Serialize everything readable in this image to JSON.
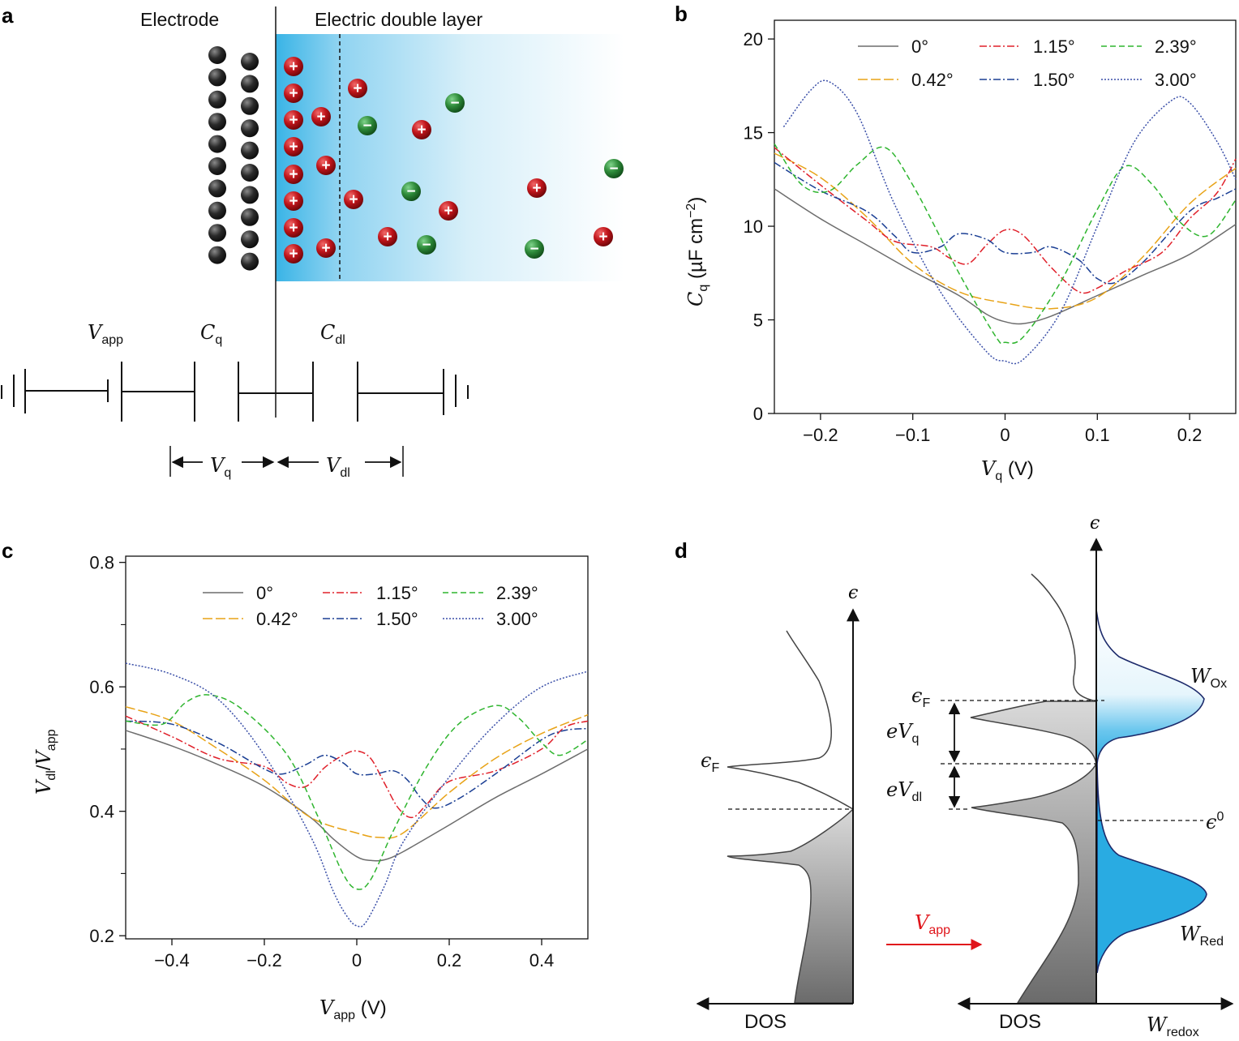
{
  "panel_labels": {
    "a": "a",
    "b": "b",
    "c": "c",
    "d": "d"
  },
  "panel_a": {
    "electrode_title": "Electrode",
    "edl_title": "Electric double layer",
    "plus_sign": "+",
    "minus_sign": "−",
    "v_app": {
      "main": "V",
      "sub": "app"
    },
    "c_q": {
      "main": "C",
      "sub": "q"
    },
    "c_dl": {
      "main": "C",
      "sub": "dl"
    },
    "v_q": {
      "main": "V",
      "sub": "q"
    },
    "v_dl": {
      "main": "V",
      "sub": "dl"
    },
    "colors": {
      "electrode": "#222222",
      "cation": "#c0151b",
      "anion": "#2e8b3a",
      "edl": "#3bb8e8"
    }
  },
  "legend": {
    "entries": [
      {
        "label": "0°",
        "color": "#6d6d6d",
        "dash": "solid"
      },
      {
        "label": "1.15°",
        "color": "#e0202a",
        "dash": "dashdot"
      },
      {
        "label": "2.39°",
        "color": "#2fb52f",
        "dash": "dashed"
      },
      {
        "label": "0.42°",
        "color": "#e8a317",
        "dash": "longdash"
      },
      {
        "label": "1.50°",
        "color": "#1b3f94",
        "dash": "dashdot"
      },
      {
        "label": "3.00°",
        "color": "#3a4fa8",
        "dash": "dotted"
      }
    ]
  },
  "chart_data": [
    {
      "type": "line",
      "panel": "b",
      "xlabel": {
        "main": "V",
        "sub": "q",
        "rest": " (V)"
      },
      "ylabel": {
        "main": "C",
        "sub": "q",
        "rest": " (µF cm",
        "sup": "−2",
        "close": ")"
      },
      "xlim": [
        -0.25,
        0.25
      ],
      "ylim": [
        0,
        21
      ],
      "xticks": [
        -0.2,
        -0.1,
        0,
        0.1,
        0.2
      ],
      "xtick_labels": [
        "−0.2",
        "−0.1",
        "0",
        "0.1",
        "0.2"
      ],
      "yticks": [
        0,
        5,
        10,
        15,
        20
      ],
      "ytick_labels": [
        "0",
        "5",
        "10",
        "15",
        "20"
      ],
      "series": [
        {
          "name": "0°",
          "points": [
            [
              -0.25,
              12.0
            ],
            [
              -0.2,
              10.4
            ],
            [
              -0.15,
              9.0
            ],
            [
              -0.1,
              7.6
            ],
            [
              -0.05,
              6.3
            ],
            [
              -0.02,
              5.3
            ],
            [
              0,
              4.9
            ],
            [
              0.02,
              4.8
            ],
            [
              0.05,
              5.2
            ],
            [
              0.1,
              6.3
            ],
            [
              0.15,
              7.4
            ],
            [
              0.2,
              8.5
            ],
            [
              0.25,
              10.1
            ]
          ]
        },
        {
          "name": "0.42°",
          "points": [
            [
              -0.25,
              13.9
            ],
            [
              -0.2,
              12.6
            ],
            [
              -0.15,
              10.5
            ],
            [
              -0.1,
              8.0
            ],
            [
              -0.05,
              6.5
            ],
            [
              0,
              5.9
            ],
            [
              0.05,
              5.6
            ],
            [
              0.1,
              6.2
            ],
            [
              0.15,
              8.4
            ],
            [
              0.2,
              11.2
            ],
            [
              0.25,
              13.1
            ]
          ]
        },
        {
          "name": "1.15°",
          "points": [
            [
              -0.25,
              14.2
            ],
            [
              -0.2,
              12.2
            ],
            [
              -0.15,
              10.3
            ],
            [
              -0.12,
              9.2
            ],
            [
              -0.08,
              8.9
            ],
            [
              -0.06,
              8.3
            ],
            [
              -0.04,
              8.0
            ],
            [
              -0.02,
              9.0
            ],
            [
              0,
              9.8
            ],
            [
              0.02,
              9.5
            ],
            [
              0.05,
              7.8
            ],
            [
              0.08,
              6.5
            ],
            [
              0.1,
              6.7
            ],
            [
              0.13,
              7.6
            ],
            [
              0.17,
              8.6
            ],
            [
              0.2,
              10.4
            ],
            [
              0.23,
              11.8
            ],
            [
              0.25,
              13.6
            ]
          ]
        },
        {
          "name": "1.50°",
          "points": [
            [
              -0.25,
              13.4
            ],
            [
              -0.2,
              11.9
            ],
            [
              -0.15,
              10.8
            ],
            [
              -0.12,
              9.5
            ],
            [
              -0.1,
              8.6
            ],
            [
              -0.07,
              8.9
            ],
            [
              -0.05,
              9.6
            ],
            [
              -0.02,
              9.3
            ],
            [
              0,
              8.6
            ],
            [
              0.03,
              8.6
            ],
            [
              0.05,
              8.9
            ],
            [
              0.08,
              8.2
            ],
            [
              0.1,
              7.2
            ],
            [
              0.12,
              7.0
            ],
            [
              0.15,
              8.1
            ],
            [
              0.2,
              10.8
            ],
            [
              0.23,
              11.5
            ],
            [
              0.25,
              12.0
            ]
          ]
        },
        {
          "name": "2.39°",
          "points": [
            [
              -0.25,
              14.4
            ],
            [
              -0.22,
              12.2
            ],
            [
              -0.19,
              11.9
            ],
            [
              -0.16,
              13.3
            ],
            [
              -0.13,
              14.2
            ],
            [
              -0.1,
              12.2
            ],
            [
              -0.05,
              7.5
            ],
            [
              -0.01,
              4.1
            ],
            [
              0,
              3.8
            ],
            [
              0.02,
              4.1
            ],
            [
              0.06,
              7.0
            ],
            [
              0.1,
              10.9
            ],
            [
              0.13,
              13.2
            ],
            [
              0.16,
              12.2
            ],
            [
              0.19,
              10.2
            ],
            [
              0.22,
              9.5
            ],
            [
              0.25,
              11.4
            ]
          ]
        },
        {
          "name": "3.00°",
          "points": [
            [
              -0.24,
              15.3
            ],
            [
              -0.21,
              17.3
            ],
            [
              -0.19,
              17.7
            ],
            [
              -0.16,
              16.0
            ],
            [
              -0.12,
              11.2
            ],
            [
              -0.07,
              6.5
            ],
            [
              -0.02,
              3.3
            ],
            [
              0,
              2.8
            ],
            [
              0.02,
              2.9
            ],
            [
              0.06,
              5.4
            ],
            [
              0.1,
              10.0
            ],
            [
              0.14,
              14.5
            ],
            [
              0.18,
              16.7
            ],
            [
              0.2,
              16.6
            ],
            [
              0.23,
              14.5
            ],
            [
              0.25,
              12.5
            ]
          ]
        }
      ]
    },
    {
      "type": "line",
      "panel": "c",
      "xlabel": {
        "main": "V",
        "sub": "app",
        "rest": " (V)"
      },
      "ylabel": {
        "main": "V",
        "sub1": "dl",
        "slash": "/",
        "main2": "V",
        "sub2": "app"
      },
      "xlim": [
        -0.5,
        0.5
      ],
      "ylim": [
        0.195,
        0.81
      ],
      "xticks": [
        -0.4,
        -0.2,
        0,
        0.2,
        0.4
      ],
      "xtick_labels": [
        "−0.4",
        "−0.2",
        "0",
        "0.2",
        "0.4"
      ],
      "yticks": [
        0.2,
        0.4,
        0.6,
        0.8
      ],
      "ytick_labels": [
        "0.2",
        "0.4",
        "0.6",
        "0.8"
      ],
      "series": [
        {
          "name": "0°",
          "points": [
            [
              -0.5,
              0.53
            ],
            [
              -0.4,
              0.505
            ],
            [
              -0.3,
              0.475
            ],
            [
              -0.2,
              0.44
            ],
            [
              -0.1,
              0.39
            ],
            [
              -0.05,
              0.355
            ],
            [
              0,
              0.327
            ],
            [
              0.03,
              0.321
            ],
            [
              0.06,
              0.322
            ],
            [
              0.1,
              0.335
            ],
            [
              0.2,
              0.378
            ],
            [
              0.3,
              0.422
            ],
            [
              0.4,
              0.46
            ],
            [
              0.5,
              0.5
            ]
          ]
        },
        {
          "name": "0.42°",
          "points": [
            [
              -0.5,
              0.568
            ],
            [
              -0.4,
              0.545
            ],
            [
              -0.3,
              0.5
            ],
            [
              -0.2,
              0.45
            ],
            [
              -0.1,
              0.39
            ],
            [
              0,
              0.365
            ],
            [
              0.05,
              0.358
            ],
            [
              0.1,
              0.365
            ],
            [
              0.2,
              0.43
            ],
            [
              0.3,
              0.485
            ],
            [
              0.4,
              0.525
            ],
            [
              0.5,
              0.555
            ]
          ]
        },
        {
          "name": "1.15°",
          "points": [
            [
              -0.5,
              0.553
            ],
            [
              -0.4,
              0.52
            ],
            [
              -0.3,
              0.485
            ],
            [
              -0.2,
              0.472
            ],
            [
              -0.15,
              0.445
            ],
            [
              -0.11,
              0.44
            ],
            [
              -0.07,
              0.47
            ],
            [
              -0.03,
              0.49
            ],
            [
              0,
              0.497
            ],
            [
              0.03,
              0.485
            ],
            [
              0.06,
              0.445
            ],
            [
              0.09,
              0.405
            ],
            [
              0.12,
              0.39
            ],
            [
              0.15,
              0.41
            ],
            [
              0.2,
              0.448
            ],
            [
              0.3,
              0.465
            ],
            [
              0.4,
              0.5
            ],
            [
              0.45,
              0.535
            ],
            [
              0.5,
              0.545
            ]
          ]
        },
        {
          "name": "1.50°",
          "points": [
            [
              -0.5,
              0.545
            ],
            [
              -0.4,
              0.54
            ],
            [
              -0.3,
              0.51
            ],
            [
              -0.2,
              0.468
            ],
            [
              -0.16,
              0.46
            ],
            [
              -0.11,
              0.475
            ],
            [
              -0.07,
              0.49
            ],
            [
              -0.03,
              0.478
            ],
            [
              0,
              0.46
            ],
            [
              0.04,
              0.46
            ],
            [
              0.08,
              0.465
            ],
            [
              0.11,
              0.45
            ],
            [
              0.14,
              0.42
            ],
            [
              0.17,
              0.405
            ],
            [
              0.22,
              0.42
            ],
            [
              0.3,
              0.46
            ],
            [
              0.4,
              0.515
            ],
            [
              0.45,
              0.53
            ],
            [
              0.5,
              0.533
            ]
          ]
        },
        {
          "name": "2.39°",
          "points": [
            [
              -0.5,
              0.545
            ],
            [
              -0.42,
              0.54
            ],
            [
              -0.37,
              0.575
            ],
            [
              -0.32,
              0.587
            ],
            [
              -0.25,
              0.565
            ],
            [
              -0.15,
              0.49
            ],
            [
              -0.08,
              0.385
            ],
            [
              -0.03,
              0.3
            ],
            [
              0,
              0.275
            ],
            [
              0.03,
              0.29
            ],
            [
              0.08,
              0.37
            ],
            [
              0.15,
              0.47
            ],
            [
              0.22,
              0.54
            ],
            [
              0.3,
              0.57
            ],
            [
              0.35,
              0.55
            ],
            [
              0.4,
              0.51
            ],
            [
              0.44,
              0.49
            ],
            [
              0.5,
              0.515
            ]
          ]
        },
        {
          "name": "3.00°",
          "points": [
            [
              -0.5,
              0.638
            ],
            [
              -0.4,
              0.62
            ],
            [
              -0.3,
              0.58
            ],
            [
              -0.2,
              0.49
            ],
            [
              -0.1,
              0.36
            ],
            [
              -0.05,
              0.27
            ],
            [
              -0.02,
              0.23
            ],
            [
              0,
              0.216
            ],
            [
              0.02,
              0.222
            ],
            [
              0.06,
              0.28
            ],
            [
              0.1,
              0.35
            ],
            [
              0.2,
              0.455
            ],
            [
              0.3,
              0.54
            ],
            [
              0.4,
              0.6
            ],
            [
              0.5,
              0.625
            ]
          ]
        }
      ]
    }
  ],
  "panel_d": {
    "epsilon": "ϵ",
    "eps_f": {
      "main": "ϵ",
      "sub": "F"
    },
    "e_vq": {
      "main": "eV",
      "sub": "q"
    },
    "e_vdl": {
      "main": "eV",
      "sub": "dl"
    },
    "eps_0": {
      "main": "ϵ",
      "sup": "0"
    },
    "w_ox": {
      "main": "W",
      "sub": "Ox"
    },
    "w_red": {
      "main": "W",
      "sub": "Red"
    },
    "v_app": {
      "main": "V",
      "sub": "app"
    },
    "dos_left": "DOS",
    "dos_right": "DOS",
    "w_redox": {
      "main": "W",
      "sub": "redox"
    },
    "colors": {
      "redox_fill": "#29abe2",
      "arrow": "#e0151b"
    }
  }
}
